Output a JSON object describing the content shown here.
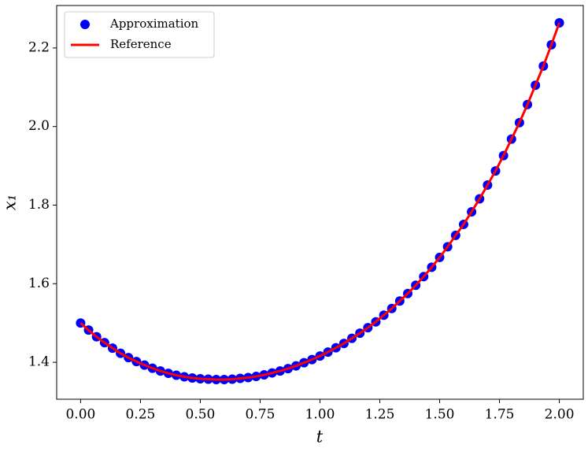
{
  "chart_data": {
    "type": "line",
    "x": [
      0,
      0.0333,
      0.0667,
      0.1,
      0.1333,
      0.1667,
      0.2,
      0.2333,
      0.2667,
      0.3,
      0.3333,
      0.3667,
      0.4,
      0.4333,
      0.4667,
      0.5,
      0.5333,
      0.5667,
      0.6,
      0.6333,
      0.6667,
      0.7,
      0.7333,
      0.7667,
      0.8,
      0.8333,
      0.8667,
      0.9,
      0.9333,
      0.9667,
      1,
      1.0333,
      1.0667,
      1.1,
      1.1333,
      1.1667,
      1.2,
      1.2333,
      1.2667,
      1.3,
      1.3333,
      1.3667,
      1.4,
      1.4333,
      1.4667,
      1.5,
      1.5333,
      1.5667,
      1.6,
      1.6333,
      1.6667,
      1.7,
      1.7333,
      1.7667,
      1.8,
      1.8333,
      1.8667,
      1.9,
      1.9333,
      1.9667,
      2
    ],
    "series": [
      {
        "name": "Approximation",
        "color": "#0000ff",
        "marker": "circle",
        "values": [
          1.5,
          1.482,
          1.465,
          1.45,
          1.436,
          1.423,
          1.412,
          1.402,
          1.393,
          1.385,
          1.378,
          1.372,
          1.367,
          1.363,
          1.36,
          1.358,
          1.357,
          1.356,
          1.356,
          1.357,
          1.359,
          1.361,
          1.364,
          1.368,
          1.373,
          1.378,
          1.384,
          1.391,
          1.399,
          1.407,
          1.416,
          1.426,
          1.437,
          1.448,
          1.461,
          1.474,
          1.488,
          1.503,
          1.52,
          1.537,
          1.556,
          1.575,
          1.596,
          1.618,
          1.642,
          1.667,
          1.694,
          1.723,
          1.751,
          1.783,
          1.816,
          1.851,
          1.887,
          1.926,
          1.968,
          2.01,
          2.056,
          2.105,
          2.154,
          2.208,
          2.264
        ]
      },
      {
        "name": "Reference",
        "color": "#ff0000",
        "marker": "line",
        "values": [
          1.5,
          1.482,
          1.465,
          1.45,
          1.436,
          1.423,
          1.412,
          1.402,
          1.393,
          1.385,
          1.378,
          1.372,
          1.367,
          1.363,
          1.36,
          1.358,
          1.357,
          1.356,
          1.356,
          1.357,
          1.359,
          1.361,
          1.364,
          1.368,
          1.373,
          1.378,
          1.384,
          1.391,
          1.399,
          1.407,
          1.416,
          1.426,
          1.437,
          1.448,
          1.461,
          1.474,
          1.488,
          1.503,
          1.52,
          1.537,
          1.556,
          1.575,
          1.596,
          1.618,
          1.642,
          1.667,
          1.694,
          1.723,
          1.751,
          1.783,
          1.816,
          1.851,
          1.887,
          1.926,
          1.968,
          2.01,
          2.056,
          2.105,
          2.154,
          2.208,
          2.264
        ]
      }
    ],
    "x_label": "t",
    "y_label": "x₁",
    "xlim": [
      -0.1,
      2.1
    ],
    "ylim": [
      1.306,
      2.308
    ],
    "xticks": [
      {
        "value": 0,
        "label": "0.00"
      },
      {
        "value": 0.25,
        "label": "0.25"
      },
      {
        "value": 0.5,
        "label": "0.50"
      },
      {
        "value": 0.75,
        "label": "0.75"
      },
      {
        "value": 1,
        "label": "1.00"
      },
      {
        "value": 1.25,
        "label": "1.25"
      },
      {
        "value": 1.5,
        "label": "1.50"
      },
      {
        "value": 1.75,
        "label": "1.75"
      },
      {
        "value": 2,
        "label": "2.00"
      }
    ],
    "yticks": [
      1.4,
      1.6,
      1.8,
      {
        "value": 2,
        "label": "2.0"
      },
      2.2
    ],
    "legend": "upper left"
  }
}
